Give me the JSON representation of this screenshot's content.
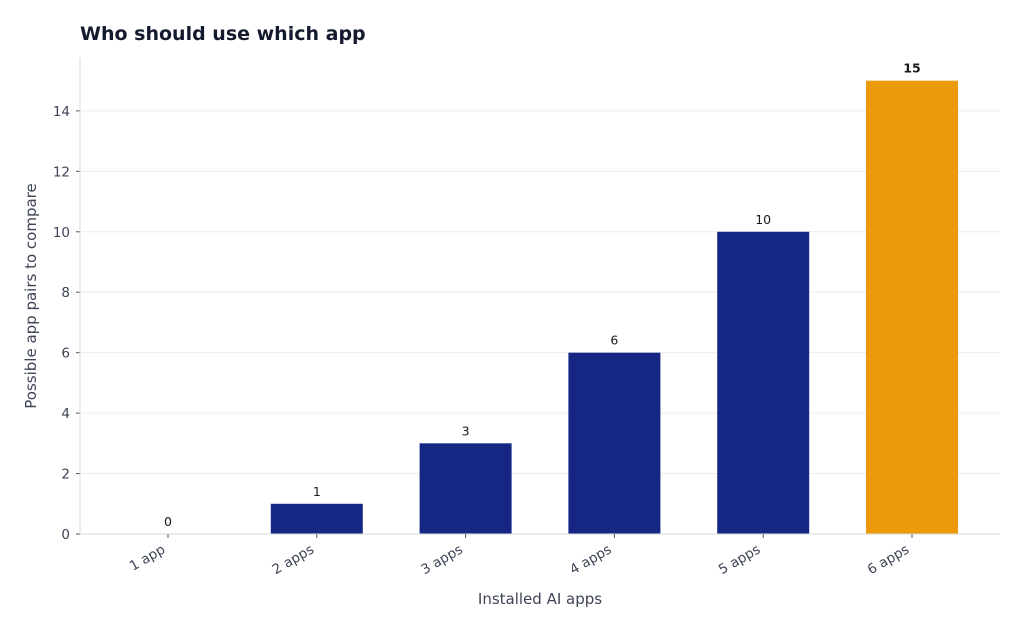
{
  "chart_data": {
    "type": "bar",
    "title": "Who should use which app",
    "xlabel": "Installed AI apps",
    "ylabel": "Possible app pairs to compare",
    "categories": [
      "1 app",
      "2 apps",
      "3 apps",
      "4 apps",
      "5 apps",
      "6 apps"
    ],
    "values": [
      0,
      1,
      3,
      6,
      10,
      15
    ],
    "ylim": [
      0,
      15.75
    ],
    "yticks": [
      0,
      2,
      4,
      6,
      8,
      10,
      12,
      14
    ],
    "grid": "horizontal",
    "bar_color": "#152783",
    "highlight_color": "#EC9A0C",
    "highlight_index": 5
  }
}
